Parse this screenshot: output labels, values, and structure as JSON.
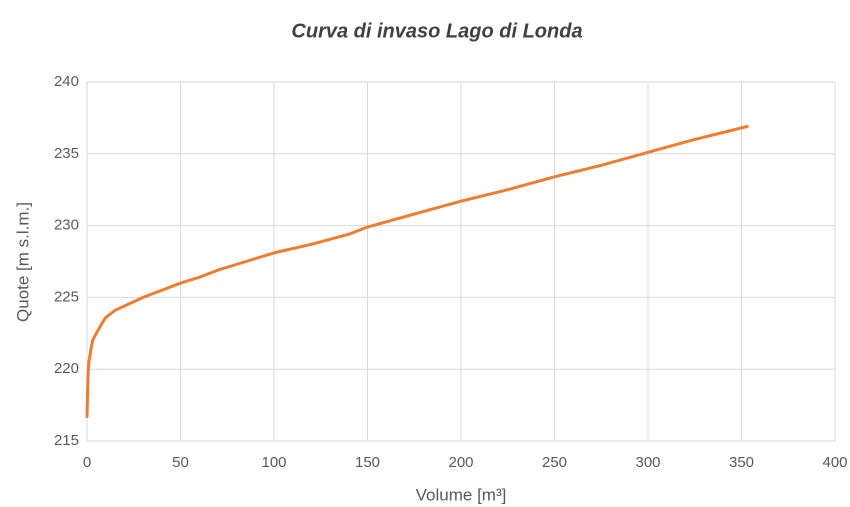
{
  "chart_data": {
    "type": "line",
    "title": "Curva di invaso Lago di Londa",
    "x_label": "Volume [m³]",
    "y_label": "Quote [m s.l.m.]",
    "x": [
      0,
      0.5,
      1,
      2,
      3,
      5,
      8,
      10,
      15,
      20,
      30,
      40,
      50,
      60,
      70,
      80,
      90,
      100,
      120,
      140,
      150,
      175,
      200,
      225,
      250,
      275,
      300,
      325,
      353
    ],
    "series": [
      {
        "color": "#ed7d31",
        "values": [
          216.7,
          219.5,
          220.5,
          221.3,
          222,
          222.5,
          223.2,
          223.6,
          224.1,
          224.4,
          225,
          225.5,
          226,
          226.4,
          226.9,
          227.3,
          227.7,
          228.1,
          228.7,
          229.4,
          229.9,
          230.8,
          231.7,
          232.5,
          233.4,
          234.2,
          235.1,
          236,
          236.9
        ]
      }
    ],
    "xlim": [
      0,
      400
    ],
    "xticks": [
      0,
      50,
      100,
      150,
      200,
      250,
      300,
      350,
      400
    ],
    "ylim": [
      215,
      240
    ],
    "yticks": [
      215,
      220,
      225,
      230,
      235,
      240
    ],
    "grid": true
  }
}
